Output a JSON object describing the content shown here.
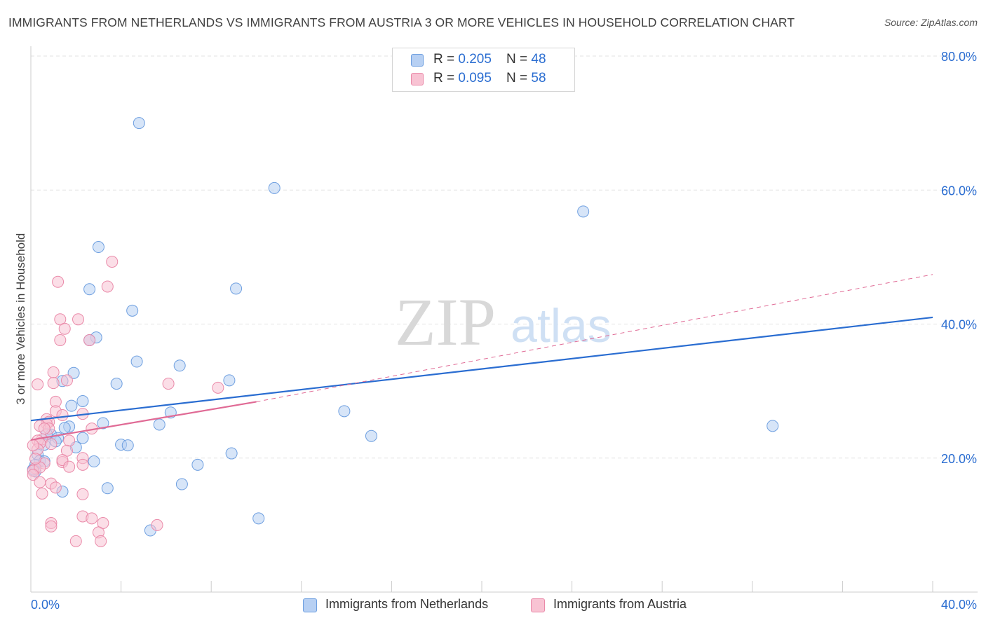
{
  "title": "IMMIGRANTS FROM NETHERLANDS VS IMMIGRANTS FROM AUSTRIA 3 OR MORE VEHICLES IN HOUSEHOLD CORRELATION CHART",
  "source": "Source: ZipAtlas.com",
  "watermark": {
    "zip": "ZIP",
    "atlas": "atlas"
  },
  "legend": {
    "netherlands": {
      "r_label": "R = ",
      "r_value": "0.205",
      "n_label": "N = ",
      "n_value": "48"
    },
    "austria": {
      "r_label": "R = ",
      "r_value": "0.095",
      "n_label": "N = ",
      "n_value": "58"
    }
  },
  "colors": {
    "netherlands_fill": "#b7d0f3",
    "netherlands_stroke": "#6e9fe0",
    "netherlands_line": "#2a6dd1",
    "austria_fill": "#f8c3d3",
    "austria_stroke": "#ea8aa9",
    "austria_line": "#e06a95",
    "axis_label": "#2a6dd1",
    "grid": "#e3e3e3"
  },
  "chart_data": {
    "type": "scatter",
    "ylabel": "3 or more Vehicles in Household",
    "xlabel": "",
    "xlim": [
      0,
      40
    ],
    "ylim": [
      0,
      80
    ],
    "x_tick_labels": [
      "0.0%",
      "40.0%"
    ],
    "y_ticks": [
      20,
      40,
      60,
      80
    ],
    "y_tick_labels": [
      "20.0%",
      "40.0%",
      "60.0%",
      "80.0%"
    ],
    "series": [
      {
        "name": "Immigrants from Netherlands",
        "r": 0.205,
        "n": 48,
        "trend": {
          "x": [
            0,
            40
          ],
          "y": [
            25.6,
            41.0
          ],
          "dashed_extension": false
        },
        "points": [
          [
            4.8,
            70.0
          ],
          [
            10.8,
            60.3
          ],
          [
            24.5,
            56.8
          ],
          [
            3.0,
            51.5
          ],
          [
            2.6,
            45.2
          ],
          [
            9.1,
            45.3
          ],
          [
            4.5,
            42.0
          ],
          [
            2.9,
            38.0
          ],
          [
            2.6,
            37.6
          ],
          [
            4.7,
            34.4
          ],
          [
            6.6,
            33.8
          ],
          [
            1.9,
            32.7
          ],
          [
            1.4,
            31.5
          ],
          [
            3.8,
            31.1
          ],
          [
            8.8,
            31.6
          ],
          [
            2.3,
            28.5
          ],
          [
            1.8,
            27.8
          ],
          [
            6.2,
            26.8
          ],
          [
            13.9,
            27.0
          ],
          [
            3.2,
            25.2
          ],
          [
            5.7,
            25.0
          ],
          [
            1.7,
            24.7
          ],
          [
            1.5,
            24.5
          ],
          [
            32.9,
            24.8
          ],
          [
            0.9,
            23.5
          ],
          [
            0.7,
            23.6
          ],
          [
            1.2,
            23.0
          ],
          [
            2.3,
            23.0
          ],
          [
            15.1,
            23.3
          ],
          [
            1.1,
            22.5
          ],
          [
            0.6,
            22.0
          ],
          [
            4.0,
            22.0
          ],
          [
            4.3,
            21.9
          ],
          [
            2.0,
            21.6
          ],
          [
            8.9,
            20.7
          ],
          [
            0.3,
            20.5
          ],
          [
            0.4,
            19.6
          ],
          [
            0.2,
            19.0
          ],
          [
            0.6,
            19.5
          ],
          [
            2.8,
            19.5
          ],
          [
            7.4,
            19.0
          ],
          [
            0.2,
            18.0
          ],
          [
            3.4,
            15.5
          ],
          [
            6.7,
            16.1
          ],
          [
            1.4,
            15.0
          ],
          [
            10.1,
            11.0
          ],
          [
            5.3,
            9.2
          ],
          [
            0.1,
            18.3
          ]
        ]
      },
      {
        "name": "Immigrants from Austria",
        "r": 0.095,
        "n": 58,
        "trend": {
          "x": [
            0,
            10
          ],
          "y": [
            22.7,
            28.4
          ],
          "extension_x": [
            10,
            40
          ],
          "extension_y": [
            28.4,
            47.4
          ],
          "dashed_extension": true
        },
        "points": [
          [
            3.6,
            49.3
          ],
          [
            1.2,
            46.3
          ],
          [
            3.4,
            45.6
          ],
          [
            1.3,
            40.7
          ],
          [
            2.1,
            40.7
          ],
          [
            1.5,
            39.3
          ],
          [
            1.3,
            37.6
          ],
          [
            2.6,
            37.6
          ],
          [
            1.0,
            32.8
          ],
          [
            6.1,
            31.1
          ],
          [
            1.0,
            31.2
          ],
          [
            8.3,
            30.5
          ],
          [
            1.6,
            31.6
          ],
          [
            0.3,
            31.0
          ],
          [
            1.1,
            28.4
          ],
          [
            1.1,
            27.0
          ],
          [
            1.4,
            26.4
          ],
          [
            2.3,
            26.6
          ],
          [
            0.7,
            25.8
          ],
          [
            0.8,
            25.4
          ],
          [
            0.7,
            25.1
          ],
          [
            0.4,
            24.8
          ],
          [
            0.8,
            24.4
          ],
          [
            2.7,
            24.4
          ],
          [
            0.6,
            24.4
          ],
          [
            0.5,
            22.8
          ],
          [
            0.3,
            22.6
          ],
          [
            1.7,
            22.6
          ],
          [
            0.4,
            22.2
          ],
          [
            0.3,
            21.3
          ],
          [
            1.6,
            21.1
          ],
          [
            0.9,
            22.1
          ],
          [
            0.1,
            21.9
          ],
          [
            2.3,
            20.0
          ],
          [
            0.6,
            19.2
          ],
          [
            1.4,
            19.4
          ],
          [
            1.4,
            19.7
          ],
          [
            2.3,
            19.0
          ],
          [
            1.7,
            18.7
          ],
          [
            0.2,
            18.5
          ],
          [
            0.1,
            18.1
          ],
          [
            0.4,
            18.6
          ],
          [
            0.1,
            17.5
          ],
          [
            0.9,
            16.2
          ],
          [
            0.4,
            16.4
          ],
          [
            1.1,
            15.6
          ],
          [
            0.5,
            14.7
          ],
          [
            2.3,
            14.6
          ],
          [
            2.3,
            11.3
          ],
          [
            2.7,
            11.0
          ],
          [
            0.9,
            10.3
          ],
          [
            3.2,
            10.3
          ],
          [
            5.6,
            10.0
          ],
          [
            0.9,
            9.8
          ],
          [
            3.0,
            8.9
          ],
          [
            2.0,
            7.6
          ],
          [
            3.1,
            7.6
          ],
          [
            0.2,
            19.9
          ]
        ]
      }
    ]
  }
}
